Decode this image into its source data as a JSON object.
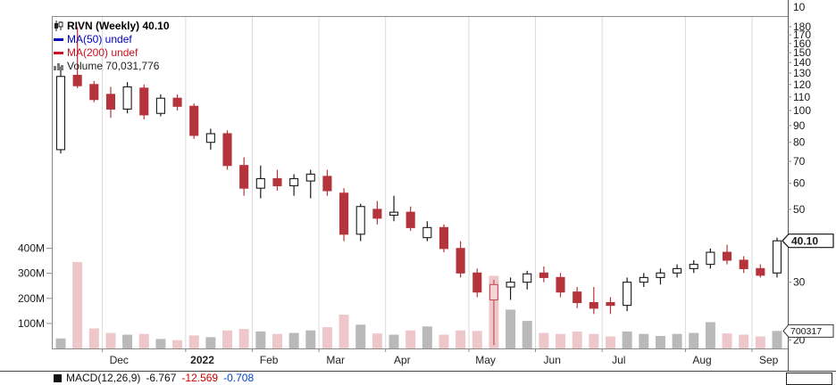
{
  "legend": {
    "symbol_line": "RIVN (Weekly) 40.10",
    "ma50": "MA(50) undef",
    "ma200": "MA(200) undef",
    "volume": "Volume 70,031,776"
  },
  "macd": {
    "label": "MACD(12,26,9)",
    "v1": "-6.767",
    "v2": "-12.569",
    "v3": "-0.708"
  },
  "price_axis": {
    "top_partial_label": "10",
    "ticks": [
      180,
      170,
      160,
      150,
      140,
      130,
      120,
      110,
      100,
      90,
      80,
      70,
      60,
      50,
      30,
      20
    ],
    "last_price_label": "40.10",
    "volume_tag": "700317"
  },
  "volume_axis": [
    {
      "label": "400M",
      "value": 400
    },
    {
      "label": "300M",
      "value": 300
    },
    {
      "label": "200M",
      "value": 200
    },
    {
      "label": "100M",
      "value": 100
    }
  ],
  "x_axis": [
    {
      "label": "Dec",
      "i": 3
    },
    {
      "label": "2022",
      "i": 8,
      "bold": true
    },
    {
      "label": "Feb",
      "i": 12
    },
    {
      "label": "Mar",
      "i": 16
    },
    {
      "label": "Apr",
      "i": 20
    },
    {
      "label": "May",
      "i": 25
    },
    {
      "label": "Jun",
      "i": 29
    },
    {
      "label": "Jul",
      "i": 33
    },
    {
      "label": "Aug",
      "i": 38
    },
    {
      "label": "Sep",
      "i": 42
    }
  ],
  "colors": {
    "down": "#b5343c",
    "up_stroke": "#1a1a1a",
    "up_fill": "#ffffff",
    "hollow_red_stroke": "#c4525c",
    "hollow_red_fill": "#f6d4d8",
    "vol_down": "#eec7ca",
    "vol_up": "#b9b9b9",
    "grid": "#dadada",
    "axis": "#8a8a8a",
    "label": "#1a1a1a"
  },
  "chart_data": {
    "type": "candlestick+volume",
    "symbol": "RIVN",
    "interval": "Weekly",
    "y_scale": "log",
    "last_price": 40.1,
    "last_volume": 70031776,
    "last_volume_m": 70,
    "price_range_visible": [
      20,
      180
    ],
    "volume_range_visible_m": [
      0,
      400
    ],
    "candles": [
      {
        "date": "2021-11-12",
        "o": 76,
        "h": 136,
        "l": 74,
        "c": 127,
        "dir": "up",
        "vol": 40
      },
      {
        "date": "2021-11-19",
        "o": 128,
        "h": 179.5,
        "l": 117,
        "c": 119,
        "dir": "down",
        "vol": 345
      },
      {
        "date": "2021-11-26",
        "o": 120,
        "h": 123,
        "l": 106,
        "c": 108,
        "dir": "down",
        "vol": 80
      },
      {
        "date": "2021-12-03",
        "o": 112,
        "h": 118,
        "l": 95,
        "c": 101,
        "dir": "down",
        "vol": 62
      },
      {
        "date": "2021-12-10",
        "o": 101,
        "h": 122,
        "l": 98,
        "c": 118,
        "dir": "up",
        "vol": 55
      },
      {
        "date": "2021-12-17",
        "o": 117,
        "h": 120,
        "l": 94,
        "c": 97,
        "dir": "down",
        "vol": 58
      },
      {
        "date": "2021-12-23",
        "o": 98,
        "h": 112,
        "l": 96,
        "c": 109,
        "dir": "up",
        "vol": 38
      },
      {
        "date": "2021-12-31",
        "o": 109,
        "h": 112,
        "l": 100,
        "c": 103,
        "dir": "down",
        "vol": 33
      },
      {
        "date": "2022-01-07",
        "o": 103,
        "h": 105,
        "l": 82,
        "c": 84,
        "dir": "down",
        "vol": 52
      },
      {
        "date": "2022-01-14",
        "o": 80,
        "h": 88,
        "l": 76,
        "c": 85,
        "dir": "up",
        "vol": 45
      },
      {
        "date": "2022-01-21",
        "o": 85,
        "h": 87,
        "l": 66,
        "c": 68,
        "dir": "down",
        "vol": 72
      },
      {
        "date": "2022-01-28",
        "o": 68,
        "h": 72,
        "l": 55,
        "c": 58,
        "dir": "down",
        "vol": 78
      },
      {
        "date": "2022-02-04",
        "o": 58,
        "h": 68,
        "l": 54,
        "c": 62,
        "dir": "up",
        "vol": 68
      },
      {
        "date": "2022-02-11",
        "o": 62,
        "h": 66,
        "l": 57,
        "c": 59,
        "dir": "down",
        "vol": 58
      },
      {
        "date": "2022-02-18",
        "o": 59,
        "h": 64,
        "l": 55,
        "c": 62,
        "dir": "up",
        "vol": 62
      },
      {
        "date": "2022-02-25",
        "o": 61,
        "h": 66,
        "l": 54,
        "c": 64,
        "dir": "up",
        "vol": 72
      },
      {
        "date": "2022-03-04",
        "o": 63,
        "h": 66,
        "l": 55,
        "c": 57,
        "dir": "down",
        "vol": 85
      },
      {
        "date": "2022-03-11",
        "o": 56,
        "h": 58,
        "l": 40,
        "c": 42,
        "dir": "down",
        "vol": 135
      },
      {
        "date": "2022-03-18",
        "o": 42,
        "h": 52,
        "l": 40,
        "c": 51,
        "dir": "up",
        "vol": 95
      },
      {
        "date": "2022-03-25",
        "o": 50,
        "h": 53,
        "l": 45,
        "c": 47,
        "dir": "down",
        "vol": 60
      },
      {
        "date": "2022-04-01",
        "o": 48,
        "h": 55,
        "l": 46,
        "c": 49,
        "dir": "up",
        "vol": 55
      },
      {
        "date": "2022-04-08",
        "o": 49,
        "h": 51,
        "l": 43,
        "c": 44,
        "dir": "down",
        "vol": 72
      },
      {
        "date": "2022-04-14",
        "o": 41,
        "h": 46,
        "l": 40,
        "c": 44,
        "dir": "up",
        "vol": 88
      },
      {
        "date": "2022-04-22",
        "o": 44,
        "h": 45,
        "l": 37,
        "c": 38,
        "dir": "down",
        "vol": 55
      },
      {
        "date": "2022-04-29",
        "o": 38,
        "h": 40,
        "l": 31,
        "c": 32,
        "dir": "down",
        "vol": 72
      },
      {
        "date": "2022-05-06",
        "o": 32,
        "h": 33,
        "l": 27,
        "c": 28,
        "dir": "down",
        "vol": 70
      },
      {
        "date": "2022-05-13",
        "o": 26.5,
        "h": 30.5,
        "l": 19.3,
        "c": 29.5,
        "dir": "hollow-red",
        "vol": 290
      },
      {
        "date": "2022-05-20",
        "o": 29,
        "h": 31,
        "l": 26.5,
        "c": 30,
        "dir": "up",
        "vol": 155
      },
      {
        "date": "2022-05-27",
        "o": 30,
        "h": 32.5,
        "l": 28.5,
        "c": 31.8,
        "dir": "up",
        "vol": 110
      },
      {
        "date": "2022-06-03",
        "o": 32,
        "h": 33.5,
        "l": 30,
        "c": 31,
        "dir": "down",
        "vol": 62
      },
      {
        "date": "2022-06-10",
        "o": 31,
        "h": 32,
        "l": 27,
        "c": 28,
        "dir": "down",
        "vol": 58
      },
      {
        "date": "2022-06-17",
        "o": 28,
        "h": 29,
        "l": 25,
        "c": 26,
        "dir": "down",
        "vol": 68
      },
      {
        "date": "2022-06-24",
        "o": 26,
        "h": 29,
        "l": 24,
        "c": 25,
        "dir": "down",
        "vol": 58
      },
      {
        "date": "2022-07-01",
        "o": 26,
        "h": 27,
        "l": 24,
        "c": 25.5,
        "dir": "down",
        "vol": 48
      },
      {
        "date": "2022-07-08",
        "o": 25.5,
        "h": 31,
        "l": 24.5,
        "c": 30,
        "dir": "up",
        "vol": 68
      },
      {
        "date": "2022-07-15",
        "o": 30,
        "h": 32,
        "l": 29,
        "c": 31,
        "dir": "up",
        "vol": 58
      },
      {
        "date": "2022-07-22",
        "o": 31,
        "h": 33,
        "l": 29.5,
        "c": 32,
        "dir": "up",
        "vol": 50
      },
      {
        "date": "2022-07-29",
        "o": 32,
        "h": 34,
        "l": 31,
        "c": 33,
        "dir": "up",
        "vol": 58
      },
      {
        "date": "2022-08-05",
        "o": 33,
        "h": 35,
        "l": 32,
        "c": 34,
        "dir": "up",
        "vol": 62
      },
      {
        "date": "2022-08-12",
        "o": 34,
        "h": 38,
        "l": 33,
        "c": 37,
        "dir": "up",
        "vol": 105
      },
      {
        "date": "2022-08-19",
        "o": 37,
        "h": 39,
        "l": 34,
        "c": 35,
        "dir": "down",
        "vol": 60
      },
      {
        "date": "2022-08-26",
        "o": 35,
        "h": 36,
        "l": 32,
        "c": 33,
        "dir": "down",
        "vol": 55
      },
      {
        "date": "2022-09-02",
        "o": 33,
        "h": 34,
        "l": 31,
        "c": 31.5,
        "dir": "down",
        "vol": 48
      },
      {
        "date": "2022-09-09",
        "o": 32,
        "h": 41,
        "l": 31,
        "c": 40.1,
        "dir": "up",
        "vol": 70
      }
    ]
  }
}
